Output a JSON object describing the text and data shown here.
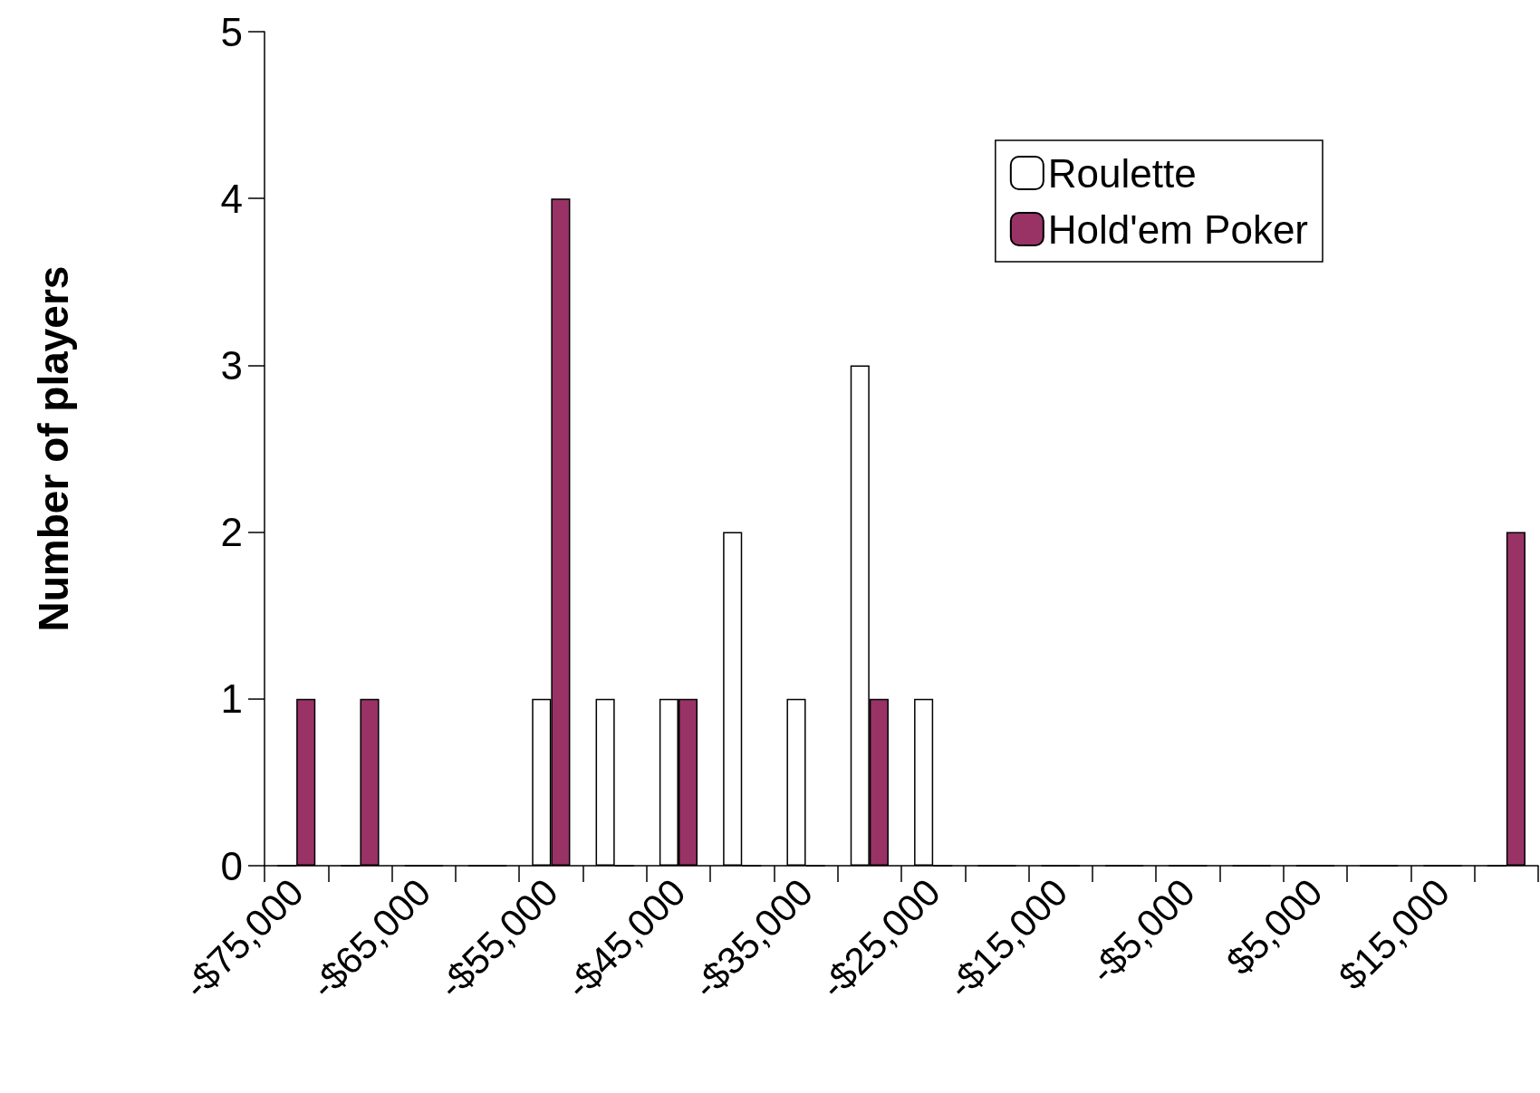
{
  "chart_data": {
    "type": "bar",
    "ylabel": "Number of players",
    "categories": [
      "-$75,000",
      null,
      "-$65,000",
      null,
      "-$55,000",
      null,
      "-$45,000",
      null,
      "-$35,000",
      null,
      "-$25,000",
      null,
      "-$15,000",
      null,
      "-$5,000",
      null,
      "$5,000",
      null,
      "$15,000",
      null
    ],
    "series": [
      {
        "name": "Roulette",
        "color": "#ffffff",
        "values": [
          0,
          0,
          0,
          0,
          1,
          1,
          1,
          2,
          1,
          3,
          1,
          0,
          0,
          0,
          0,
          0,
          0,
          0,
          0,
          0
        ]
      },
      {
        "name": "Hold'em Poker",
        "color": "#993366",
        "values": [
          1,
          1,
          0,
          0,
          4,
          0,
          1,
          0,
          0,
          1,
          0,
          0,
          0,
          0,
          0,
          0,
          0,
          0,
          0,
          2
        ]
      }
    ],
    "ylim": [
      0,
      5
    ],
    "yticks": [
      0,
      1,
      2,
      3,
      4,
      5
    ],
    "grid": false,
    "legend": "top right"
  }
}
